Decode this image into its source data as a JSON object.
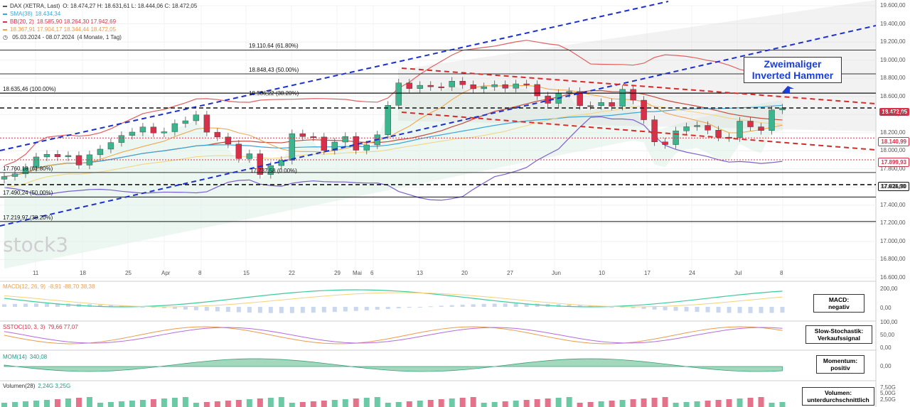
{
  "header": {
    "instrument": "DAX (XETRA, Last)",
    "ohlc": "O: 18.474,27  H: 18.631,61  L: 18.444,06  C: 18.472,05",
    "sma": "SMA(38)",
    "sma_value": "18.434,34",
    "bb": "BB(20, 2)",
    "bb_values": "18.585,90  18.264,30  17.942,69",
    "ichimoku_values": "18.367,91  17.904,17  18.344,44  18.472,05",
    "range": "05.03.2024 - 08.07.2024",
    "period": "(4 Monate, 1 Tag)"
  },
  "callouts": {
    "pattern_line1": "Zweimaliger",
    "pattern_line2": "Inverted Hammer",
    "macd_l1": "MACD:",
    "macd_l2": "negativ",
    "stoch_l1": "Slow-Stochastik:",
    "stoch_l2": "Verkaufssignal",
    "mom_l1": "Momentum:",
    "mom_l2": "positiv",
    "vol_l1": "Volumen:",
    "vol_l2": "unterdurchschnittlich"
  },
  "price_labels": {
    "last": "18.472,05",
    "support1": "18.140,99",
    "support2": "17.899,93",
    "support3": "17.626,90"
  },
  "fib_labels": [
    {
      "text": "19.110,64 (61.80%)",
      "value": 19110.64
    },
    {
      "text": "18.848,43 (50.00%)",
      "value": 18848.43
    },
    {
      "text": "18.635,46 (100.00%)",
      "value": 18635.46
    },
    {
      "text": "18.586,22 (38.20%)",
      "value": 18586.22
    },
    {
      "text": "17.760,18 (61.80%)",
      "value": 17760.18
    },
    {
      "text": "17.737,58 (0.00%)",
      "value": 17737.58
    },
    {
      "text": "17.490,24 (50.00%)",
      "value": 17490.24
    },
    {
      "text": "17.219,97 (38.20%)",
      "value": 17219.97
    }
  ],
  "indicator_labels": {
    "macd": "MACD(12, 26, 9)",
    "macd_values": "-8,91  -88,70  38,38",
    "stoch": "SSTOC(10, 3, 3)",
    "stoch_values": "79,66  77,07",
    "mom": "MOM(14)",
    "mom_values": "340,08",
    "vol": "Volumen(28)",
    "vol_values": "2,24G  3,25G"
  },
  "watermark": "stock3",
  "colors": {
    "up": "#3cb58e",
    "down": "#d9304a",
    "channel": "#1a2fcf",
    "trend": "#d92a2a"
  },
  "chart_data": {
    "type": "candlestick",
    "y_axis": {
      "min": 16600,
      "max": 19600,
      "ticks": [
        "19.600,00",
        "19.400,00",
        "19.200,00",
        "19.000,00",
        "18.800,00",
        "18.600,00",
        "18.400,00",
        "18.200,00",
        "18.000,00",
        "17.800,00",
        "17.600,00",
        "17.400,00",
        "17.200,00",
        "17.000,00",
        "16.800,00",
        "16.600,00"
      ]
    },
    "x_ticks": [
      "11",
      "18",
      "25",
      "Apr",
      "8",
      "15",
      "22",
      "29",
      "Mai",
      "6",
      "13",
      "20",
      "27",
      "Jun",
      "10",
      "17",
      "24",
      "Jul",
      "8"
    ],
    "closes": [
      17716,
      17746,
      17814,
      17932,
      17961,
      17933,
      17948,
      17842,
      17956,
      18018,
      18091,
      18169,
      18206,
      18262,
      18196,
      18210,
      18300,
      18331,
      18396,
      18205,
      18152,
      18074,
      17913,
      17967,
      17738,
      17837,
      17894,
      18189,
      18156,
      18152,
      18003,
      18096,
      18158,
      18006,
      18065,
      18176,
      18502,
      18748,
      18686,
      18722,
      18706,
      18704,
      18768,
      18729,
      18684,
      18706,
      18730,
      18690,
      18738,
      18731,
      18605,
      18523,
      18632,
      18654,
      18498,
      18497,
      18533,
      18491,
      18677,
      18558,
      18342,
      18098,
      18068,
      18220,
      18265,
      18280,
      18227,
      18150,
      18144,
      18327,
      18264,
      18223,
      18450,
      18472
    ],
    "macd_axis": [
      "200,00",
      "0,00"
    ],
    "stoch_axis": [
      "100,00",
      "50,00",
      "0,00"
    ],
    "mom_axis": [
      "0,00"
    ],
    "vol_axis": [
      "7,50G",
      "5,00G",
      "2,50G"
    ]
  }
}
